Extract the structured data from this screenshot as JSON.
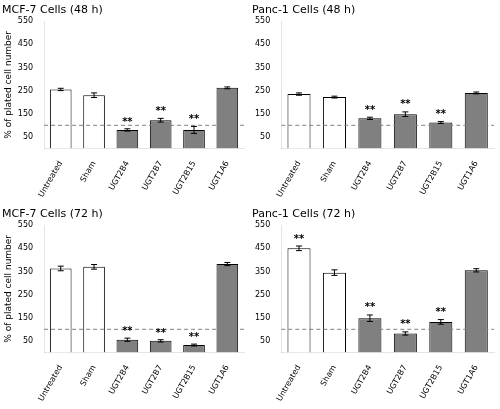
{
  "chart_data": [
    {
      "type": "bar",
      "title": "MCF-7 Cells (48 h)",
      "ylabel": "% of plated cell number",
      "categories": [
        "Untreated",
        "Sham",
        "UGT2B4",
        "UGT2B7",
        "UGT2B15",
        "UGT1A6"
      ],
      "values": [
        255,
        230,
        80,
        122,
        80,
        262
      ],
      "errors": [
        5,
        10,
        5,
        8,
        15,
        4
      ],
      "colors": [
        "white",
        "white",
        "#808080",
        "#808080",
        "#808080",
        "#808080"
      ],
      "hline": 100,
      "annotations": [
        {
          "text": "**",
          "x": "UGT2B4",
          "y": 92
        },
        {
          "text": "**",
          "x": "UGT2B7",
          "y": 138
        },
        {
          "text": "**",
          "x": "UGT2B15",
          "y": 105
        }
      ],
      "ylim": [
        0,
        550
      ],
      "yticks": [
        50,
        150,
        250,
        350,
        450,
        550
      ],
      "grid": false
    },
    {
      "type": "bar",
      "title": "Panc-1 Cells (48 h)",
      "categories": [
        "Untreated",
        "Sham",
        "UGT2B4",
        "UGT2B7",
        "UGT2B15",
        "UGT1A6"
      ],
      "values": [
        235,
        222,
        130,
        148,
        112,
        240
      ],
      "errors": [
        5,
        4,
        5,
        10,
        4,
        4
      ],
      "colors": [
        "white",
        "white",
        "#808080",
        "#808080",
        "#808080",
        "#808080"
      ],
      "hline": 100,
      "annotations": [
        {
          "text": "**",
          "x": "UGT2B4",
          "y": 143
        },
        {
          "text": "**",
          "x": "UGT2B7",
          "y": 167
        },
        {
          "text": "**",
          "x": "UGT2B15",
          "y": 125
        }
      ],
      "ylim": [
        0,
        550
      ],
      "yticks": [
        50,
        150,
        250,
        350,
        450,
        550
      ],
      "grid": false
    },
    {
      "type": "bar",
      "title": "MCF-7 Cells (72 h)",
      "ylabel": "% of plated cell number",
      "categories": [
        "Untreated",
        "Sham",
        "UGT2B4",
        "UGT2B7",
        "UGT2B15",
        "UGT1A6"
      ],
      "values": [
        363,
        370,
        55,
        50,
        32,
        382
      ],
      "errors": [
        10,
        10,
        7,
        5,
        4,
        7
      ],
      "colors": [
        "white",
        "white",
        "#808080",
        "#808080",
        "#808080",
        "#808080"
      ],
      "hline": 100,
      "annotations": [
        {
          "text": "**",
          "x": "UGT2B4",
          "y": 70
        },
        {
          "text": "**",
          "x": "UGT2B7",
          "y": 62
        },
        {
          "text": "**",
          "x": "UGT2B15",
          "y": 44
        }
      ],
      "ylim": [
        0,
        550
      ],
      "yticks": [
        50,
        150,
        250,
        350,
        450,
        550
      ],
      "grid": false
    },
    {
      "type": "bar",
      "title": "Panc-1 Cells (72 h)",
      "categories": [
        "Untreated",
        "Sham",
        "UGT2B4",
        "UGT2B7",
        "UGT2B15",
        "UGT1A6"
      ],
      "values": [
        450,
        345,
        148,
        82,
        132,
        355
      ],
      "errors": [
        10,
        12,
        14,
        7,
        10,
        7
      ],
      "colors": [
        "white",
        "white",
        "#808080",
        "#808080",
        "#808080",
        "#808080"
      ],
      "hline": 100,
      "annotations": [
        {
          "text": "**",
          "x": "Untreated",
          "y": 468
        },
        {
          "text": "**",
          "x": "UGT2B4",
          "y": 172
        },
        {
          "text": "**",
          "x": "UGT2B7",
          "y": 99
        },
        {
          "text": "**",
          "x": "UGT2B15",
          "y": 152
        }
      ],
      "ylim": [
        0,
        550
      ],
      "yticks": [
        50,
        150,
        250,
        350,
        450,
        550
      ],
      "grid": false
    }
  ]
}
